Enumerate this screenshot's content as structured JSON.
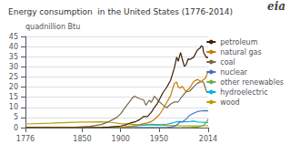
{
  "chart_data": {
    "type": "line",
    "title": "Energy consumption  in the United States (1776-2014)",
    "ylabel": "quadnillion Btu",
    "annotations": [
      "eia"
    ],
    "xlim": [
      1776,
      2014
    ],
    "xticks": [
      1776,
      1850,
      1900,
      1950,
      2014
    ],
    "ylim": [
      0,
      45
    ],
    "yticks": [
      0,
      5,
      10,
      15,
      20,
      25,
      30,
      35,
      40,
      45
    ],
    "grid": true,
    "legend": "right",
    "series": [
      {
        "name": "wood",
        "color": "#b8a000",
        "x": [
          1776,
          1810,
          1840,
          1860,
          1875,
          1885,
          1900,
          1920,
          1940,
          1960,
          1980,
          2000,
          2014
        ],
        "values": [
          1.8,
          2.2,
          2.6,
          2.8,
          2.9,
          2.7,
          2.0,
          1.5,
          1.3,
          1.1,
          0.9,
          0.8,
          0.9
        ]
      },
      {
        "name": "hydroelectric",
        "color": "#00b0f0",
        "x": [
          1776,
          1890,
          1895,
          1900,
          1905,
          1910,
          1915,
          1920,
          1925,
          1930,
          1935,
          1940,
          1945,
          1950,
          1955,
          1960,
          1965,
          1970,
          1975,
          1980,
          1985,
          1990,
          1995,
          2000,
          2005,
          2010,
          2014
        ],
        "values": [
          0.0,
          0.05,
          0.1,
          0.2,
          0.3,
          0.5,
          0.7,
          0.8,
          1.0,
          1.2,
          1.4,
          1.6,
          1.5,
          1.4,
          1.5,
          1.7,
          2.1,
          2.6,
          3.0,
          2.9,
          2.9,
          3.0,
          3.2,
          2.8,
          2.7,
          2.5,
          2.5
        ]
      },
      {
        "name": "other renewables",
        "color": "#70ad47",
        "x": [
          1776,
          1980,
          1990,
          1995,
          2000,
          2003,
          2005,
          2007,
          2008,
          2010,
          2012,
          2014
        ],
        "values": [
          0.0,
          0.05,
          0.1,
          0.2,
          0.3,
          0.5,
          0.7,
          1.0,
          1.2,
          1.8,
          2.8,
          4.3
        ]
      },
      {
        "name": "nuclear",
        "color": "#4472c4",
        "x": [
          1776,
          1956,
          1960,
          1965,
          1970,
          1975,
          1978,
          1980,
          1985,
          1990,
          1995,
          2000,
          2005,
          2010,
          2014
        ],
        "values": [
          0.0,
          0.0,
          0.1,
          0.3,
          0.6,
          1.9,
          3.0,
          2.7,
          4.1,
          6.1,
          7.1,
          7.9,
          8.2,
          8.4,
          8.3
        ]
      },
      {
        "name": "coal",
        "color": "#7a6648",
        "x": [
          1776,
          1840,
          1860,
          1875,
          1885,
          1895,
          1900,
          1905,
          1910,
          1915,
          1918,
          1923,
          1930,
          1933,
          1937,
          1940,
          1944,
          1950,
          1955,
          1960,
          1965,
          1970,
          1975,
          1980,
          1985,
          1990,
          1995,
          2000,
          2005,
          2008,
          2012,
          2014
        ],
        "values": [
          0.0,
          0.2,
          0.6,
          1.5,
          3.0,
          5.0,
          6.8,
          9.5,
          12.0,
          14.5,
          15.5,
          14.5,
          13.6,
          11.0,
          13.5,
          12.5,
          15.5,
          12.9,
          11.2,
          9.8,
          11.6,
          12.7,
          12.7,
          15.4,
          17.6,
          18.0,
          20.1,
          21.9,
          22.8,
          22.4,
          17.5,
          17.9
        ]
      },
      {
        "name": "natural gas",
        "color": "#cc7a00",
        "x": [
          1776,
          1900,
          1905,
          1910,
          1915,
          1920,
          1925,
          1930,
          1935,
          1940,
          1944,
          1948,
          1950,
          1955,
          1960,
          1965,
          1970,
          1973,
          1975,
          1978,
          1980,
          1985,
          1990,
          1995,
          2000,
          2005,
          2008,
          2010,
          2012,
          2014
        ],
        "values": [
          0.0,
          0.2,
          0.3,
          0.5,
          0.7,
          1.0,
          1.5,
          2.0,
          2.3,
          3.0,
          4.0,
          5.5,
          6.2,
          9.0,
          12.4,
          15.8,
          21.8,
          22.5,
          19.9,
          19.5,
          20.4,
          17.8,
          19.6,
          22.7,
          23.8,
          22.6,
          23.8,
          24.1,
          26.0,
          27.5
        ]
      },
      {
        "name": "petroleum",
        "color": "#3d2000",
        "x": [
          1776,
          1860,
          1875,
          1885,
          1895,
          1900,
          1905,
          1910,
          1915,
          1920,
          1925,
          1930,
          1935,
          1940,
          1944,
          1948,
          1950,
          1955,
          1960,
          1965,
          1970,
          1973,
          1975,
          1978,
          1980,
          1983,
          1985,
          1988,
          1990,
          1995,
          2000,
          2003,
          2005,
          2007,
          2008,
          2010,
          2012,
          2014
        ],
        "values": [
          0.0,
          0.01,
          0.1,
          0.3,
          0.6,
          0.8,
          1.2,
          1.9,
          2.5,
          3.0,
          4.0,
          5.5,
          5.5,
          7.6,
          10.0,
          12.0,
          13.5,
          17.2,
          19.9,
          23.3,
          29.5,
          34.8,
          32.7,
          37.1,
          34.2,
          30.2,
          30.9,
          34.0,
          33.6,
          34.7,
          38.4,
          39.1,
          40.4,
          39.8,
          37.1,
          35.7,
          34.5,
          34.8
        ]
      }
    ]
  }
}
